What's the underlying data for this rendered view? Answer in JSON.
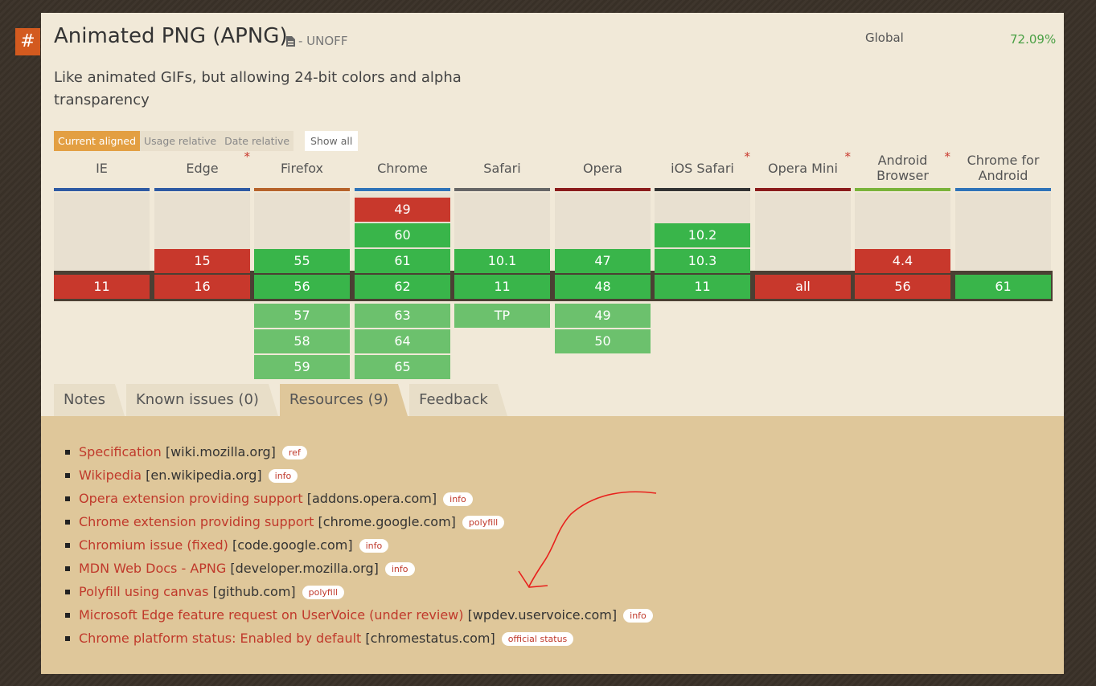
{
  "feature": {
    "title": "Animated PNG (APNG)",
    "status": "- UNOFF",
    "description": "Like animated GIFs, but allowing 24-bit colors and alpha transparency",
    "global_label": "Global",
    "global_value": "72.09%"
  },
  "anchor_symbol": "#",
  "view_buttons": [
    "Current aligned",
    "Usage relative",
    "Date relative"
  ],
  "show_all_label": "Show all",
  "colors": {
    "supported": "#39b54a",
    "supported_future": "#6cc16d",
    "unsupported": "#c8382c",
    "accent": "#e39f42",
    "link": "#c0392b"
  },
  "browsers": [
    {
      "name": "IE",
      "star": "",
      "line_color": "#2e5aa3",
      "past": [],
      "current": {
        "v": "11",
        "s": "n"
      },
      "future": []
    },
    {
      "name": "Edge",
      "star": "*",
      "line_color": "#2e5aa3",
      "past": [
        {
          "v": "15",
          "s": "n"
        }
      ],
      "current": {
        "v": "16",
        "s": "n"
      },
      "future": []
    },
    {
      "name": "Firefox",
      "star": "",
      "line_color": "#b6632b",
      "past": [
        {
          "v": "55",
          "s": "y"
        }
      ],
      "current": {
        "v": "56",
        "s": "y"
      },
      "future": [
        {
          "v": "57",
          "s": "y"
        },
        {
          "v": "58",
          "s": "y"
        },
        {
          "v": "59",
          "s": "y"
        }
      ]
    },
    {
      "name": "Chrome",
      "star": "",
      "line_color": "#2e73b8",
      "past": [
        {
          "v": "49",
          "s": "n"
        },
        {
          "v": "60",
          "s": "y"
        },
        {
          "v": "61",
          "s": "y"
        }
      ],
      "current": {
        "v": "62",
        "s": "y"
      },
      "future": [
        {
          "v": "63",
          "s": "y"
        },
        {
          "v": "64",
          "s": "y"
        },
        {
          "v": "65",
          "s": "y"
        }
      ]
    },
    {
      "name": "Safari",
      "star": "",
      "line_color": "#666666",
      "past": [
        {
          "v": "10.1",
          "s": "y"
        }
      ],
      "current": {
        "v": "11",
        "s": "y"
      },
      "future": [
        {
          "v": "TP",
          "s": "y"
        }
      ]
    },
    {
      "name": "Opera",
      "star": "",
      "line_color": "#8b1c1c",
      "past": [
        {
          "v": "47",
          "s": "y"
        }
      ],
      "current": {
        "v": "48",
        "s": "y"
      },
      "future": [
        {
          "v": "49",
          "s": "y"
        },
        {
          "v": "50",
          "s": "y"
        }
      ]
    },
    {
      "name": "iOS Safari",
      "star": "*",
      "line_color": "#333333",
      "past": [
        {
          "v": "10.2",
          "s": "y"
        },
        {
          "v": "10.3",
          "s": "y"
        }
      ],
      "current": {
        "v": "11",
        "s": "y"
      },
      "future": []
    },
    {
      "name": "Opera Mini",
      "star": "*",
      "line_color": "#8b1c1c",
      "past": [],
      "current": {
        "v": "all",
        "s": "n"
      },
      "future": []
    },
    {
      "name": "Android Browser",
      "star": "*",
      "line_color": "#7ab33a",
      "past": [
        {
          "v": "4.4",
          "s": "n"
        }
      ],
      "current": {
        "v": "56",
        "s": "n"
      },
      "future": []
    },
    {
      "name": "Chrome for Android",
      "star": "",
      "line_color": "#2e73b8",
      "past": [],
      "current": {
        "v": "61",
        "s": "y"
      },
      "future": []
    }
  ],
  "tabs": [
    "Notes",
    "Known issues (0)",
    "Resources (9)",
    "Feedback"
  ],
  "active_tab": "Resources (9)",
  "resources": [
    {
      "link": "Specification",
      "domain": "[wiki.mozilla.org]",
      "tag": "ref"
    },
    {
      "link": "Wikipedia",
      "domain": "[en.wikipedia.org]",
      "tag": "info"
    },
    {
      "link": "Opera extension providing support",
      "domain": "[addons.opera.com]",
      "tag": "info"
    },
    {
      "link": "Chrome extension providing support",
      "domain": "[chrome.google.com]",
      "tag": "polyfill"
    },
    {
      "link": "Chromium issue (fixed)",
      "domain": "[code.google.com]",
      "tag": "info"
    },
    {
      "link": "MDN Web Docs - APNG",
      "domain": "[developer.mozilla.org]",
      "tag": "info"
    },
    {
      "link": "Polyfill using canvas",
      "domain": "[github.com]",
      "tag": "polyfill"
    },
    {
      "link": "Microsoft Edge feature request on UserVoice (under review)",
      "domain": "[wpdev.uservoice.com]",
      "tag": "info"
    },
    {
      "link": "Chrome platform status: Enabled by default",
      "domain": "[chromestatus.com]",
      "tag": "official status"
    }
  ]
}
